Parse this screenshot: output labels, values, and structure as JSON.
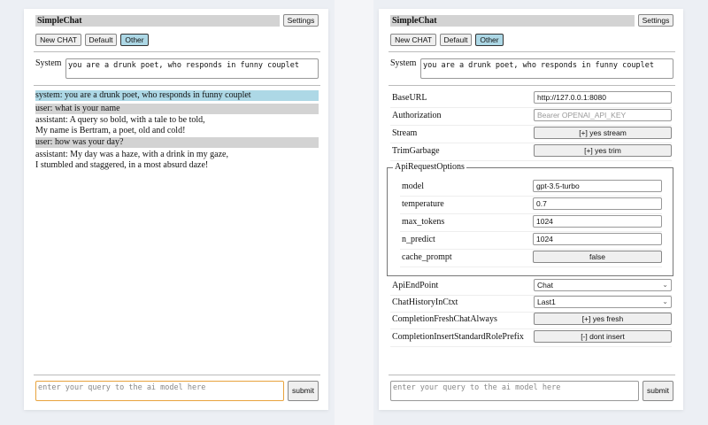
{
  "app": {
    "title": "SimpleChat",
    "settings_label": "Settings",
    "buttons": [
      "New CHAT",
      "Default",
      "Other"
    ],
    "system_label": "System",
    "system_prompt": "you are a drunk poet, who responds in funny couplet",
    "query_placeholder": "enter your query to the ai model here",
    "submit_label": "submit"
  },
  "chat": {
    "messages": [
      {
        "role": "system",
        "lines": [
          "system: you are a drunk poet, who responds in funny couplet"
        ]
      },
      {
        "role": "user",
        "lines": [
          "user: what is your name"
        ]
      },
      {
        "role": "assistant",
        "lines": [
          "assistant: A query so bold, with a tale to be told,",
          "My name is Bertram, a poet, old and cold!"
        ]
      },
      {
        "role": "user",
        "lines": [
          "user: how was your day?"
        ]
      },
      {
        "role": "assistant",
        "lines": [
          "assistant: My day was a haze, with a drink in my gaze,",
          "I stumbled and staggered, in a most absurd daze!"
        ]
      }
    ]
  },
  "settings": {
    "baseurl": {
      "label": "BaseURL",
      "value": "http://127.0.0.1:8080"
    },
    "authorization": {
      "label": "Authorization",
      "placeholder": "Bearer OPENAI_API_KEY"
    },
    "stream": {
      "label": "Stream",
      "value": "[+] yes stream"
    },
    "trim": {
      "label": "TrimGarbage",
      "value": "[+] yes trim"
    },
    "api_opts": {
      "legend": "ApiRequestOptions",
      "model": {
        "label": "model",
        "value": "gpt-3.5-turbo"
      },
      "temperature": {
        "label": "temperature",
        "value": "0.7"
      },
      "max_tokens": {
        "label": "max_tokens",
        "value": "1024"
      },
      "n_predict": {
        "label": "n_predict",
        "value": "1024"
      },
      "cache_prompt": {
        "label": "cache_prompt",
        "value": "false"
      }
    },
    "endpoint": {
      "label": "ApiEndPoint",
      "value": "Chat"
    },
    "history": {
      "label": "ChatHistoryInCtxt",
      "value": "Last1"
    },
    "fresh": {
      "label": "CompletionFreshChatAlways",
      "value": "[+] yes fresh"
    },
    "prefix": {
      "label": "CompletionInsertStandardRolePrefix",
      "value": "[-] dont insert"
    }
  },
  "colors": {
    "system_bg": "#add8e6",
    "user_bg": "#d3d3d3",
    "active_button": "#add8e6",
    "focus_border": "#e8a33d"
  }
}
